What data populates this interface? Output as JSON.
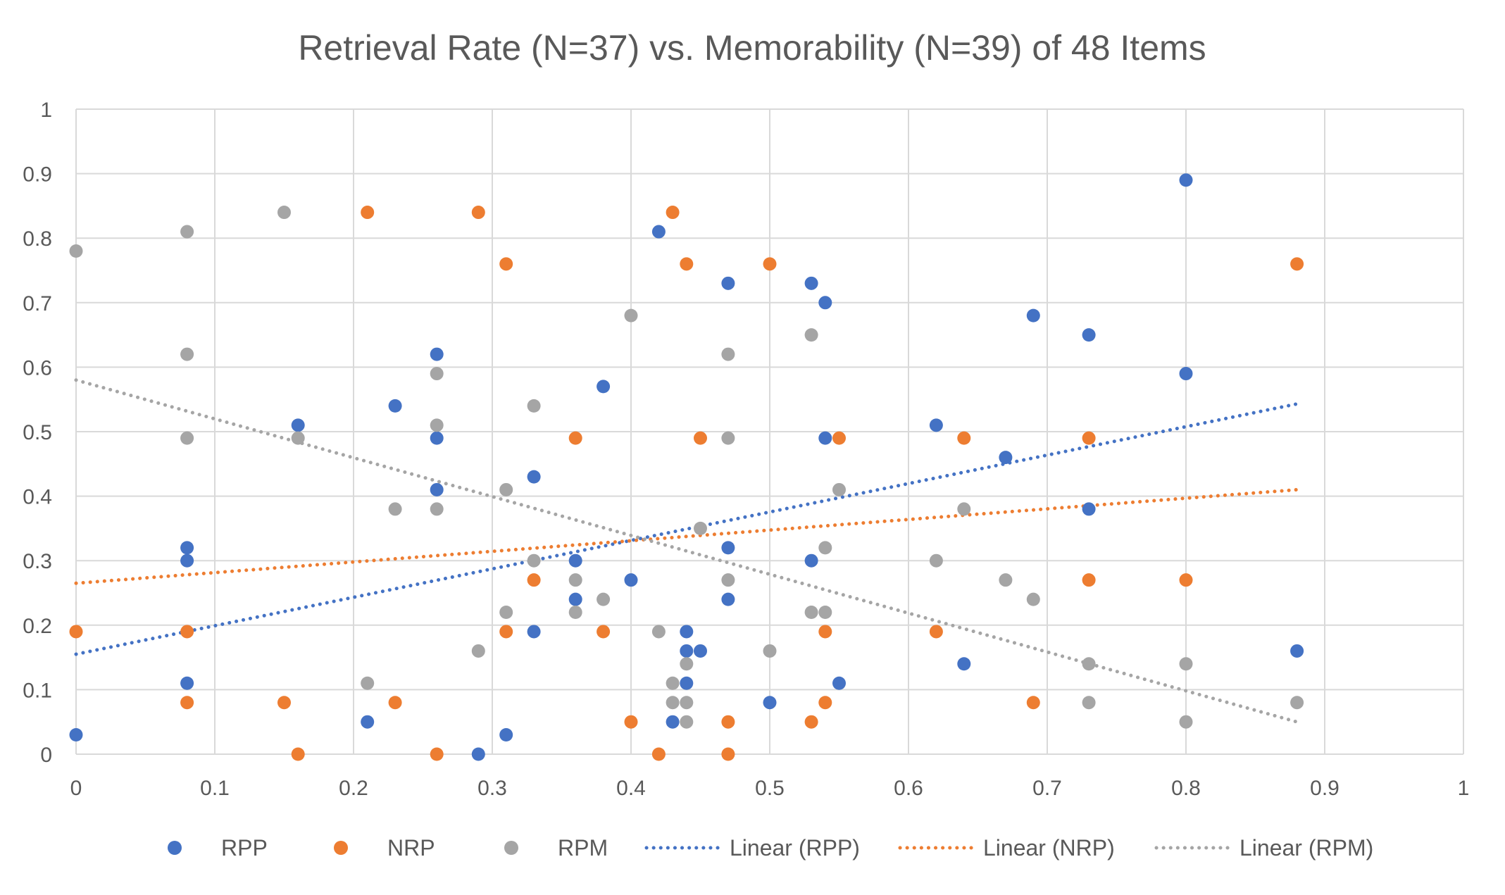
{
  "chart_data": {
    "type": "scatter",
    "title": "Retrieval Rate (N=37) vs. Memorability (N=39) of 48 Items",
    "xlabel": "",
    "ylabel": "",
    "xlim": [
      0,
      1
    ],
    "ylim": [
      0,
      1
    ],
    "x_ticks": [
      "0",
      "0.1",
      "0.2",
      "0.3",
      "0.4",
      "0.5",
      "0.6",
      "0.7",
      "0.8",
      "0.9",
      "1"
    ],
    "y_ticks": [
      "0",
      "0.1",
      "0.2",
      "0.3",
      "0.4",
      "0.5",
      "0.6",
      "0.7",
      "0.8",
      "0.9",
      "1"
    ],
    "grid": true,
    "legend_position": "bottom",
    "series": [
      {
        "name": "RPP",
        "color": "#4472C4",
        "points": [
          [
            0,
            0.03
          ],
          [
            0.08,
            0.32
          ],
          [
            0.08,
            0.3
          ],
          [
            0.08,
            0.11
          ],
          [
            0.16,
            0.51
          ],
          [
            0.21,
            0.05
          ],
          [
            0.23,
            0.54
          ],
          [
            0.26,
            0.62
          ],
          [
            0.26,
            0.49
          ],
          [
            0.26,
            0.41
          ],
          [
            0.29,
            0.0
          ],
          [
            0.31,
            0.03
          ],
          [
            0.33,
            0.43
          ],
          [
            0.33,
            0.19
          ],
          [
            0.36,
            0.3
          ],
          [
            0.36,
            0.24
          ],
          [
            0.38,
            0.57
          ],
          [
            0.4,
            0.27
          ],
          [
            0.42,
            0.81
          ],
          [
            0.43,
            0.05
          ],
          [
            0.44,
            0.19
          ],
          [
            0.44,
            0.16
          ],
          [
            0.44,
            0.11
          ],
          [
            0.45,
            0.16
          ],
          [
            0.47,
            0.73
          ],
          [
            0.47,
            0.32
          ],
          [
            0.47,
            0.24
          ],
          [
            0.5,
            0.08
          ],
          [
            0.53,
            0.73
          ],
          [
            0.53,
            0.3
          ],
          [
            0.54,
            0.7
          ],
          [
            0.54,
            0.49
          ],
          [
            0.55,
            0.11
          ],
          [
            0.62,
            0.51
          ],
          [
            0.64,
            0.14
          ],
          [
            0.67,
            0.46
          ],
          [
            0.69,
            0.68
          ],
          [
            0.73,
            0.65
          ],
          [
            0.73,
            0.38
          ],
          [
            0.8,
            0.89
          ],
          [
            0.8,
            0.59
          ],
          [
            0.88,
            0.16
          ]
        ]
      },
      {
        "name": "NRP",
        "color": "#ED7D31",
        "points": [
          [
            0,
            0.19
          ],
          [
            0.08,
            0.19
          ],
          [
            0.08,
            0.08
          ],
          [
            0.15,
            0.08
          ],
          [
            0.16,
            0.0
          ],
          [
            0.21,
            0.84
          ],
          [
            0.23,
            0.08
          ],
          [
            0.26,
            0.0
          ],
          [
            0.29,
            0.84
          ],
          [
            0.31,
            0.76
          ],
          [
            0.31,
            0.19
          ],
          [
            0.33,
            0.27
          ],
          [
            0.36,
            0.49
          ],
          [
            0.38,
            0.19
          ],
          [
            0.4,
            0.05
          ],
          [
            0.42,
            0.0
          ],
          [
            0.43,
            0.84
          ],
          [
            0.44,
            0.76
          ],
          [
            0.45,
            0.49
          ],
          [
            0.47,
            0.05
          ],
          [
            0.47,
            0.0
          ],
          [
            0.5,
            0.76
          ],
          [
            0.53,
            0.05
          ],
          [
            0.54,
            0.19
          ],
          [
            0.54,
            0.08
          ],
          [
            0.55,
            0.49
          ],
          [
            0.62,
            0.19
          ],
          [
            0.64,
            0.49
          ],
          [
            0.69,
            0.08
          ],
          [
            0.73,
            0.49
          ],
          [
            0.73,
            0.27
          ],
          [
            0.8,
            0.27
          ],
          [
            0.88,
            0.76
          ]
        ]
      },
      {
        "name": "RPM",
        "color": "#A5A5A5",
        "points": [
          [
            0,
            0.78
          ],
          [
            0.08,
            0.81
          ],
          [
            0.08,
            0.62
          ],
          [
            0.08,
            0.49
          ],
          [
            0.15,
            0.84
          ],
          [
            0.16,
            0.49
          ],
          [
            0.21,
            0.11
          ],
          [
            0.23,
            0.38
          ],
          [
            0.26,
            0.59
          ],
          [
            0.26,
            0.51
          ],
          [
            0.26,
            0.38
          ],
          [
            0.29,
            0.16
          ],
          [
            0.31,
            0.41
          ],
          [
            0.31,
            0.22
          ],
          [
            0.33,
            0.54
          ],
          [
            0.33,
            0.3
          ],
          [
            0.36,
            0.27
          ],
          [
            0.36,
            0.22
          ],
          [
            0.38,
            0.24
          ],
          [
            0.4,
            0.68
          ],
          [
            0.42,
            0.19
          ],
          [
            0.43,
            0.11
          ],
          [
            0.43,
            0.08
          ],
          [
            0.44,
            0.14
          ],
          [
            0.44,
            0.08
          ],
          [
            0.44,
            0.05
          ],
          [
            0.45,
            0.35
          ],
          [
            0.47,
            0.62
          ],
          [
            0.47,
            0.49
          ],
          [
            0.47,
            0.27
          ],
          [
            0.5,
            0.16
          ],
          [
            0.53,
            0.65
          ],
          [
            0.53,
            0.22
          ],
          [
            0.54,
            0.32
          ],
          [
            0.54,
            0.22
          ],
          [
            0.55,
            0.41
          ],
          [
            0.62,
            0.3
          ],
          [
            0.64,
            0.38
          ],
          [
            0.67,
            0.27
          ],
          [
            0.69,
            0.24
          ],
          [
            0.73,
            0.14
          ],
          [
            0.73,
            0.08
          ],
          [
            0.8,
            0.14
          ],
          [
            0.8,
            0.05
          ],
          [
            0.88,
            0.08
          ]
        ]
      }
    ],
    "trendlines": [
      {
        "name": "Linear (RPP)",
        "color": "#4472C4",
        "from": [
          0,
          0.155
        ],
        "to": [
          0.88,
          0.543
        ]
      },
      {
        "name": "Linear (NRP)",
        "color": "#ED7D31",
        "from": [
          0,
          0.265
        ],
        "to": [
          0.88,
          0.41
        ]
      },
      {
        "name": "Linear (RPM)",
        "color": "#A5A5A5",
        "from": [
          0,
          0.58
        ],
        "to": [
          0.88,
          0.05
        ]
      }
    ]
  }
}
